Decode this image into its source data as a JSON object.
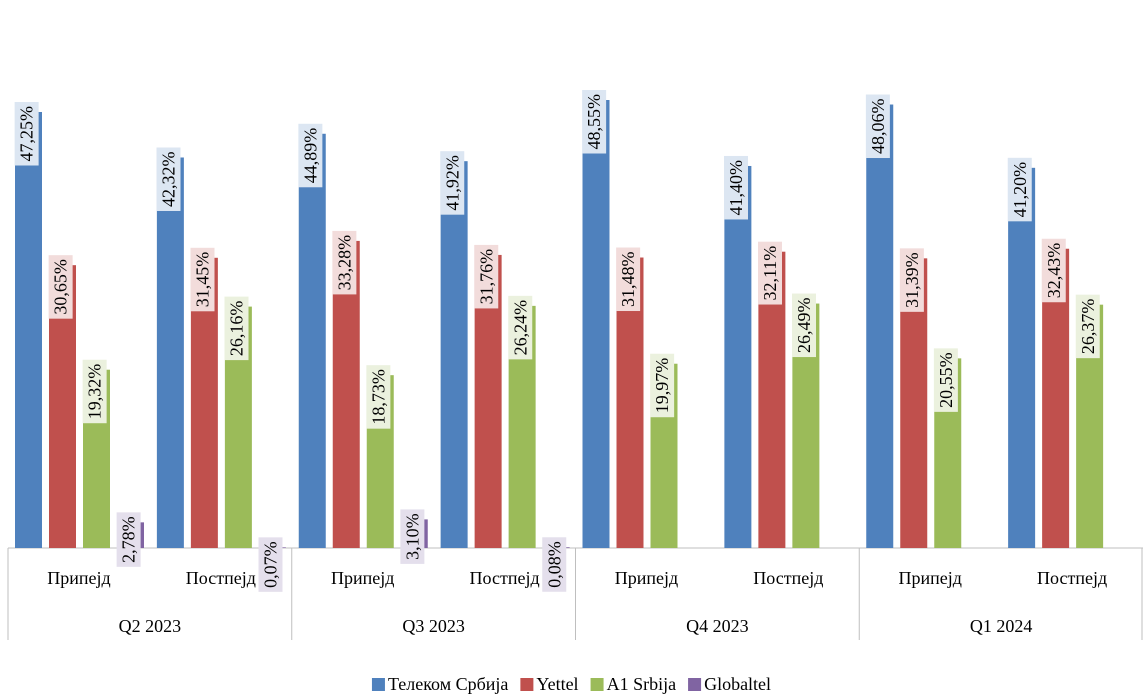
{
  "chart_data": {
    "type": "bar",
    "groups": [
      "Q2 2023",
      "Q3 2023",
      "Q4 2023",
      "Q1 2024"
    ],
    "categories": [
      "Припејд",
      "Постпејд",
      "Припејд",
      "Постпејд",
      "Припејд",
      "Постпејд",
      "Припејд",
      "Постпејд"
    ],
    "series": [
      {
        "name": "Телеком Србија",
        "color": "#4f81bd",
        "label_bg": "#dce6f2",
        "values": [
          47.25,
          42.32,
          44.89,
          41.92,
          48.55,
          41.4,
          48.06,
          41.2
        ],
        "value_labels": [
          "47,25%",
          "42,32%",
          "44,89%",
          "41,92%",
          "48,55%",
          "41,40%",
          "48,06%",
          "41,20%"
        ]
      },
      {
        "name": "Yettel",
        "color": "#c0504d",
        "label_bg": "#f2dcdb",
        "values": [
          30.65,
          31.45,
          33.28,
          31.76,
          31.48,
          32.11,
          31.39,
          32.43
        ],
        "value_labels": [
          "30,65%",
          "31,45%",
          "33,28%",
          "31,76%",
          "31,48%",
          "32,11%",
          "31,39%",
          "32,43%"
        ]
      },
      {
        "name": "A1 Srbija",
        "color": "#9bbb59",
        "label_bg": "#ebf1de",
        "values": [
          19.32,
          26.16,
          18.73,
          26.24,
          19.97,
          26.49,
          20.55,
          26.37
        ],
        "value_labels": [
          "19,32%",
          "26,16%",
          "18,73%",
          "26,24%",
          "19,97%",
          "26,49%",
          "20,55%",
          "26,37%"
        ]
      },
      {
        "name": "Globaltel",
        "color": "#8064a2",
        "label_bg": "#e4dfec",
        "values": [
          2.78,
          0.07,
          3.1,
          0.08,
          null,
          null,
          null,
          null
        ],
        "value_labels": [
          "2,78%",
          "0,07%",
          "3,10%",
          "0,08%",
          null,
          null,
          null,
          null
        ]
      }
    ],
    "legend": "bottom"
  }
}
